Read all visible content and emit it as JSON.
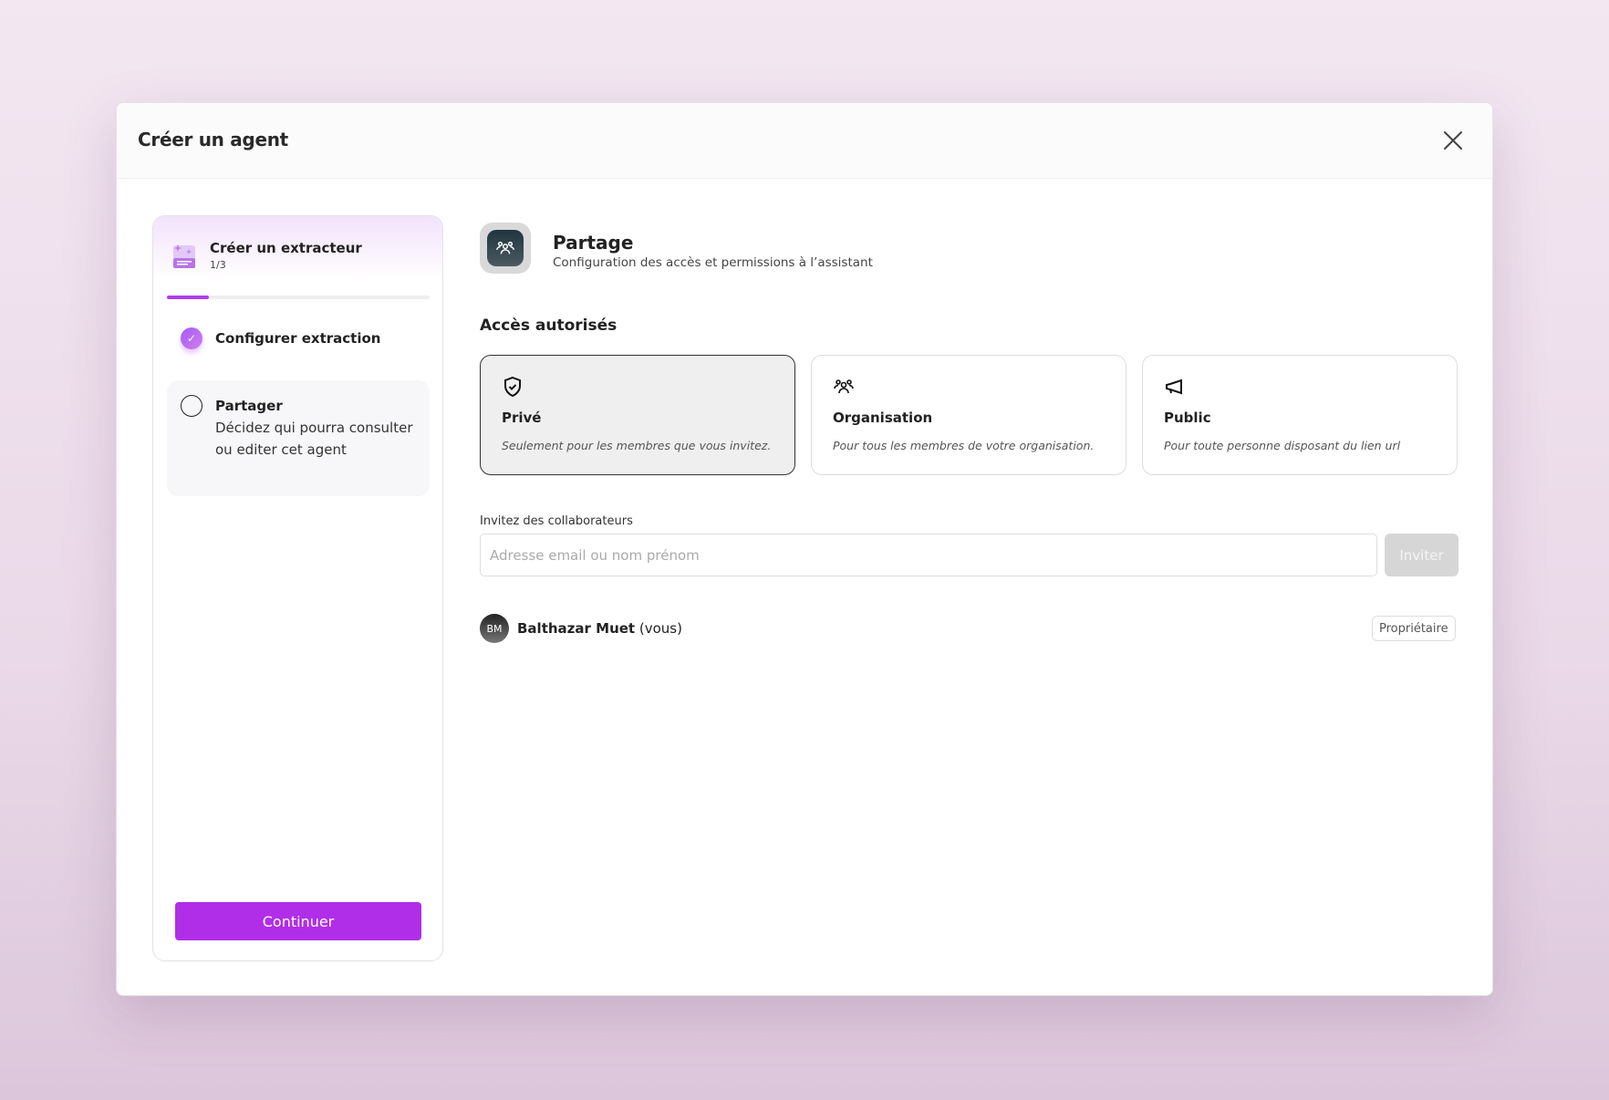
{
  "modal": {
    "title": "Créer un agent",
    "close_icon": "close-icon"
  },
  "wizard": {
    "title": "Créer un extracteur",
    "counter": "1/3",
    "progress_percent": 16,
    "steps": [
      {
        "label": "Configurer extraction",
        "status": "completed"
      },
      {
        "label": "Partager",
        "description": "Décidez qui pourra consulter ou editer cet agent",
        "status": "current"
      }
    ],
    "continue_label": "Continuer",
    "accent": "#b12ee8"
  },
  "section": {
    "title": "Partage",
    "subtitle": "Configuration des accès et permissions à l’assistant",
    "icon": "users-icon"
  },
  "access": {
    "title": "Accès autorisés",
    "options": [
      {
        "label": "Privé",
        "description": "Seulement pour les membres que vous invitez.",
        "icon": "shield-check-icon",
        "selected": true
      },
      {
        "label": "Organisation",
        "description": "Pour tous les membres de votre organisation.",
        "icon": "users-icon",
        "selected": false
      },
      {
        "label": "Public",
        "description": "Pour toute personne disposant du lien url",
        "icon": "megaphone-icon",
        "selected": false
      }
    ]
  },
  "invite": {
    "label": "Invitez des collaborateurs",
    "placeholder": "Adresse email ou nom prénom",
    "value": "",
    "button": "Inviter"
  },
  "members": [
    {
      "initials": "BM",
      "name": "Balthazar Muet",
      "suffix": "(vous)",
      "role": "Propriétaire"
    }
  ]
}
